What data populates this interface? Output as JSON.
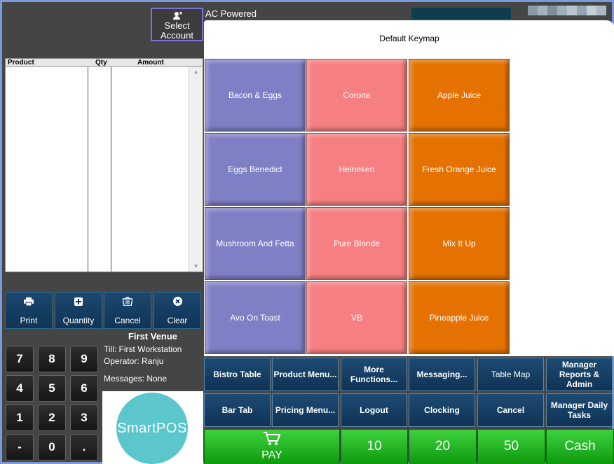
{
  "header": {
    "select_account_label_1": "Select",
    "select_account_label_2": "Account",
    "power_status": "AC Powered"
  },
  "order_grid": {
    "columns": [
      "Product",
      "Qty",
      "Amount"
    ]
  },
  "actions": [
    {
      "label": "Print",
      "icon": "printer-icon"
    },
    {
      "label": "Quantity",
      "icon": "plus-box-icon"
    },
    {
      "label": "Cancel",
      "icon": "basket-icon"
    },
    {
      "label": "Clear",
      "icon": "close-circle-icon"
    }
  ],
  "keypad": [
    "7",
    "8",
    "9",
    "4",
    "5",
    "6",
    "1",
    "2",
    "3",
    "-",
    "0",
    "."
  ],
  "info": {
    "venue": "First Venue",
    "till": "Till: First Workstation",
    "operator": "Operator: Ranju",
    "messages": "Messages: None"
  },
  "logo": "SmartPOS",
  "keymap": {
    "title": "Default Keymap",
    "tiles": [
      {
        "label": "Bacon & Eggs",
        "color": "#7f7fc6"
      },
      {
        "label": "Corona",
        "color": "#f67f81"
      },
      {
        "label": "Apple Juice",
        "color": "#e57200"
      },
      {
        "label": "Eggs Benedict",
        "color": "#7f7fc6"
      },
      {
        "label": "Heineken",
        "color": "#f67f81"
      },
      {
        "label": "Fresh Orange Juice",
        "color": "#e57200"
      },
      {
        "label": "Mushroom And Fetta",
        "color": "#7f7fc6"
      },
      {
        "label": "Pure Blonde",
        "color": "#f67f81"
      },
      {
        "label": "Mix It Up",
        "color": "#e57200"
      },
      {
        "label": "Avo On Toast",
        "color": "#7f7fc6"
      },
      {
        "label": "VB",
        "color": "#f67f81"
      },
      {
        "label": "Pineapple Juice",
        "color": "#e57200"
      }
    ]
  },
  "functions_row1": [
    {
      "label": "Bistro Table"
    },
    {
      "label": "Product Menu..."
    },
    {
      "label": "More Functions..."
    },
    {
      "label": "Messaging..."
    },
    {
      "label": "Table Map"
    },
    {
      "label": "Manager Reports & Admin"
    }
  ],
  "functions_row2": [
    {
      "label": "Bar Tab"
    },
    {
      "label": "Pricing Menu..."
    },
    {
      "label": "Logout"
    },
    {
      "label": "Clocking"
    },
    {
      "label": "Cancel"
    },
    {
      "label": "Manager Daily Tasks"
    }
  ],
  "payment": {
    "pay_label": "PAY",
    "pay_icon": "cart-icon",
    "quick_amounts": [
      "10",
      "20",
      "50"
    ],
    "cash_label": "Cash"
  },
  "colors": {
    "accent_green": "#1fb81f",
    "navy": "#0f3456"
  }
}
